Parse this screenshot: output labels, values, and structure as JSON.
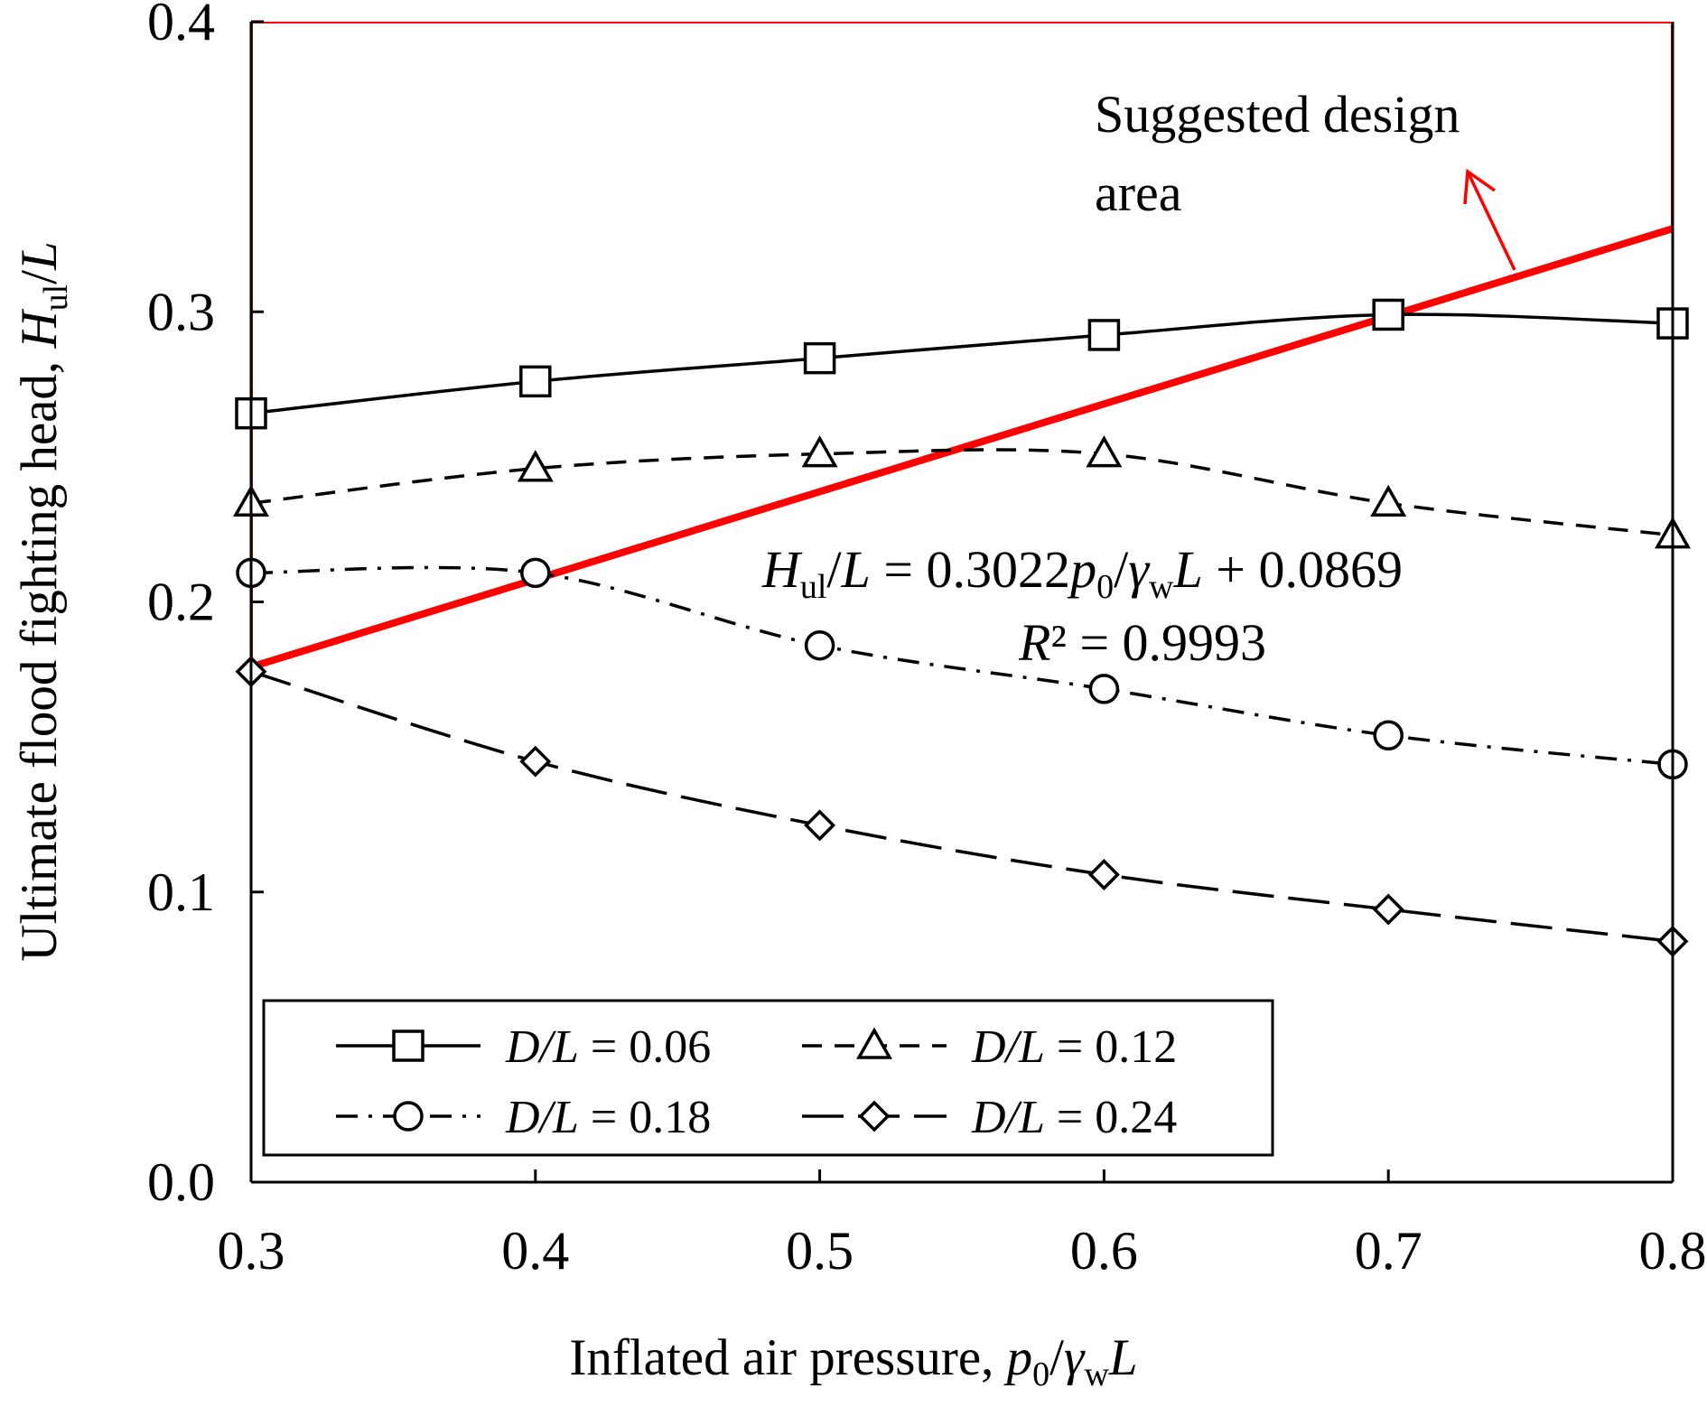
{
  "chart_data": {
    "type": "line",
    "xlabel": {
      "main": "Inflated air pressure, ",
      "p": "p",
      "sub0": "0",
      "slash": "/",
      "gamma": "γ",
      "subw": "w",
      "L": "L"
    },
    "ylabel": {
      "main": "Ultimate flood fighting head, ",
      "H": "H",
      "sub": "ul",
      "slash": "/",
      "L": "L"
    },
    "xlim": [
      0.3,
      0.8
    ],
    "ylim": [
      0.0,
      0.4
    ],
    "xticks": [
      0.3,
      0.4,
      0.5,
      0.6,
      0.7,
      0.8
    ],
    "xtick_labels": [
      "0.3",
      "0.4",
      "0.5",
      "0.6",
      "0.7",
      "0.8"
    ],
    "yticks": [
      0.0,
      0.1,
      0.2,
      0.3,
      0.4
    ],
    "ytick_labels": [
      "0.0",
      "0.1",
      "0.2",
      "0.3",
      "0.4"
    ],
    "x": [
      0.3,
      0.4,
      0.5,
      0.6,
      0.7,
      0.8
    ],
    "series": [
      {
        "name": "D/L = 0.06",
        "prefix": "D/L",
        "value": " = 0.06",
        "marker": "square",
        "dash": "solid",
        "values": [
          0.265,
          0.276,
          0.284,
          0.292,
          0.299,
          0.296
        ]
      },
      {
        "name": "D/L = 0.12",
        "prefix": "D/L",
        "value": " = 0.12",
        "marker": "triangle",
        "dash": "dashed",
        "values": [
          0.234,
          0.246,
          0.251,
          0.251,
          0.234,
          0.223
        ]
      },
      {
        "name": "D/L = 0.18",
        "prefix": "D/L",
        "value": " = 0.18",
        "marker": "circle",
        "dash": "dashdot",
        "values": [
          0.21,
          0.21,
          0.185,
          0.17,
          0.154,
          0.144
        ]
      },
      {
        "name": "D/L = 0.24",
        "prefix": "D/L",
        "value": " = 0.24",
        "marker": "diamond",
        "dash": "longdash",
        "values": [
          0.176,
          0.145,
          0.123,
          0.106,
          0.094,
          0.083
        ]
      }
    ],
    "fit_line": {
      "slope": 0.3022,
      "intercept": 0.0869,
      "x_range": [
        0.3,
        0.8
      ],
      "color": "#ff0000"
    },
    "design_area": {
      "color": "#ff0000",
      "top": 0.4
    },
    "equation": {
      "H": "H",
      "sub": "ul",
      "rest1": "/",
      "L": "L",
      "eq": " = 0.3022",
      "p": "p",
      "sub0": "0",
      "slash": "/",
      "gamma": "γ",
      "subw": "w",
      "L2": "L",
      "tail": " + 0.0869"
    },
    "r2": {
      "R": "R",
      "rest": "² = 0.9993"
    },
    "design_note": {
      "line1": "Suggested design",
      "line2": "area"
    },
    "legend_position": "bottom-left",
    "grid": false
  }
}
